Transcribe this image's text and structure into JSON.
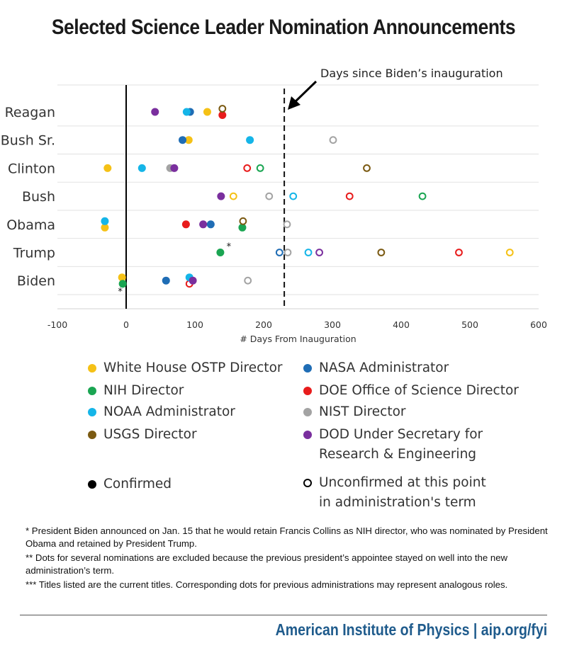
{
  "title": "Selected Science Leader Nomination Announcements",
  "chart_data": {
    "type": "scatter",
    "title": "Selected Science Leader Nomination Announcements",
    "xlabel": "# Days From Inauguration",
    "xlim": [
      -100,
      600
    ],
    "xticks": [
      -100,
      0,
      100,
      200,
      300,
      400,
      500,
      600
    ],
    "xtick_labels": [
      "-100",
      "0",
      "100",
      "200",
      "300",
      "400",
      "500",
      "600"
    ],
    "categories": [
      "Reagan",
      "Bush Sr.",
      "Clinton",
      "Bush",
      "Obama",
      "Trump",
      "Biden"
    ],
    "reference_line": {
      "x": 230,
      "label": "Days since Biden’s inauguration"
    },
    "series": [
      {
        "name": "White House OSTP Director",
        "color": "#f5c116",
        "points": [
          {
            "president": "Reagan",
            "x": 118,
            "confirmed": true
          },
          {
            "president": "Bush Sr.",
            "x": 91,
            "confirmed": true
          },
          {
            "president": "Clinton",
            "x": -27,
            "confirmed": true
          },
          {
            "president": "Bush",
            "x": 156,
            "confirmed": false
          },
          {
            "president": "Obama",
            "x": -31,
            "confirmed": true,
            "offset": 1
          },
          {
            "president": "Trump",
            "x": 558,
            "confirmed": false
          },
          {
            "president": "Biden",
            "x": -6,
            "confirmed": true,
            "offset": -1
          }
        ]
      },
      {
        "name": "NASA Administrator",
        "color": "#1f6db5",
        "points": [
          {
            "president": "Reagan",
            "x": 93,
            "confirmed": true
          },
          {
            "president": "Bush Sr.",
            "x": 82,
            "confirmed": true
          },
          {
            "president": "Obama",
            "x": 123,
            "confirmed": true
          },
          {
            "president": "Trump",
            "x": 223,
            "confirmed": false
          },
          {
            "president": "Biden",
            "x": 58,
            "confirmed": true
          }
        ]
      },
      {
        "name": "NIH Director",
        "color": "#1aa552",
        "points": [
          {
            "president": "Clinton",
            "x": 195,
            "confirmed": false
          },
          {
            "president": "Bush",
            "x": 431,
            "confirmed": false
          },
          {
            "president": "Obama",
            "x": 169,
            "confirmed": true,
            "offset": 1
          },
          {
            "president": "Trump",
            "x": 137,
            "confirmed": true
          },
          {
            "president": "Biden",
            "x": -5,
            "confirmed": true,
            "offset": 1
          }
        ]
      },
      {
        "name": "DOE Office of Science Director",
        "color": "#e81c1c",
        "points": [
          {
            "president": "Reagan",
            "x": 140,
            "confirmed": true,
            "offset": 1
          },
          {
            "president": "Clinton",
            "x": 176,
            "confirmed": false
          },
          {
            "president": "Bush",
            "x": 325,
            "confirmed": false
          },
          {
            "president": "Obama",
            "x": 87,
            "confirmed": true
          },
          {
            "president": "Trump",
            "x": 484,
            "confirmed": false
          },
          {
            "president": "Biden",
            "x": 92,
            "confirmed": false,
            "offset": 1
          }
        ]
      },
      {
        "name": "NOAA Administrator",
        "color": "#15b5e8",
        "points": [
          {
            "president": "Reagan",
            "x": 88,
            "confirmed": true
          },
          {
            "president": "Bush Sr.",
            "x": 180,
            "confirmed": true
          },
          {
            "president": "Clinton",
            "x": 23,
            "confirmed": true
          },
          {
            "president": "Bush",
            "x": 243,
            "confirmed": false
          },
          {
            "president": "Obama",
            "x": -31,
            "confirmed": true,
            "offset": -1
          },
          {
            "president": "Trump",
            "x": 265,
            "confirmed": false
          },
          {
            "president": "Biden",
            "x": 92,
            "confirmed": true,
            "offset": -1
          }
        ]
      },
      {
        "name": "NIST Director",
        "color": "#a3a3a3",
        "points": [
          {
            "president": "Bush Sr.",
            "x": 301,
            "confirmed": false
          },
          {
            "president": "Clinton",
            "x": 64,
            "confirmed": true
          },
          {
            "president": "Bush",
            "x": 208,
            "confirmed": false
          },
          {
            "president": "Obama",
            "x": 234,
            "confirmed": false
          },
          {
            "president": "Trump",
            "x": 235,
            "confirmed": false
          },
          {
            "president": "Biden",
            "x": 177,
            "confirmed": false
          }
        ]
      },
      {
        "name": "USGS Director",
        "color": "#7b5a12",
        "points": [
          {
            "president": "Reagan",
            "x": 140,
            "confirmed": false,
            "offset": -1
          },
          {
            "president": "Clinton",
            "x": 350,
            "confirmed": false
          },
          {
            "president": "Obama",
            "x": 170,
            "confirmed": false,
            "offset": -1
          },
          {
            "president": "Trump",
            "x": 371,
            "confirmed": false
          }
        ]
      },
      {
        "name": "DOD Under Secretary for Research & Engineering",
        "color": "#7a2f9e",
        "points": [
          {
            "president": "Reagan",
            "x": 42,
            "confirmed": true
          },
          {
            "president": "Clinton",
            "x": 70,
            "confirmed": true
          },
          {
            "president": "Bush",
            "x": 138,
            "confirmed": true
          },
          {
            "president": "Obama",
            "x": 112,
            "confirmed": true
          },
          {
            "president": "Trump",
            "x": 281,
            "confirmed": false
          },
          {
            "president": "Biden",
            "x": 97,
            "confirmed": true
          }
        ]
      }
    ],
    "annotations": [
      {
        "president": "Trump",
        "x": 146,
        "text": "*"
      },
      {
        "president": "Biden",
        "x": -12,
        "text": "*"
      }
    ]
  },
  "legend": {
    "items": [
      {
        "label": "White House OSTP Director",
        "color": "#f5c116"
      },
      {
        "label": "NASA Administrator",
        "color": "#1f6db5"
      },
      {
        "label": "NIH Director",
        "color": "#1aa552"
      },
      {
        "label": "DOE Office of Science Director",
        "color": "#e81c1c"
      },
      {
        "label": "NOAA Administrator",
        "color": "#15b5e8"
      },
      {
        "label": "NIST Director",
        "color": "#a3a3a3"
      },
      {
        "label": "USGS Director",
        "color": "#7b5a12"
      },
      {
        "label_line1": "DOD Under Secretary for",
        "label_line2": "Research & Engineering",
        "color": "#7a2f9e"
      }
    ],
    "confirmed_label": "Confirmed",
    "unconfirmed_line1": "Unconfirmed at this point",
    "unconfirmed_line2": "in administration's term"
  },
  "footnotes": {
    "note1": "* President Biden announced on Jan. 15 that he would retain Francis Collins as NIH director, who was nominated by President Obama and retained by President Trump.",
    "note2": "** Dots for several nominations are excluded because the previous president’s appointee stayed on well into the new administration’s term.",
    "note3": "*** Titles listed are the current titles. Corresponding dots for previous administrations may represent analogous roles."
  },
  "footer": "American Institute of Physics | aip.org/fyi"
}
